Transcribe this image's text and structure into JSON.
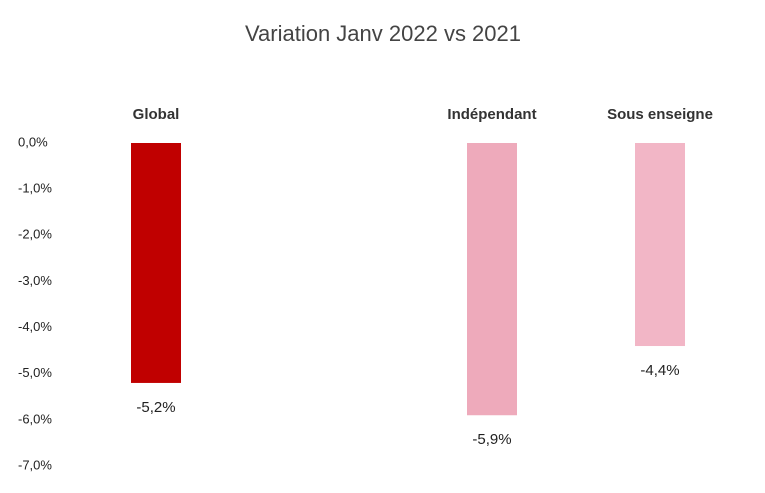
{
  "chart_data": {
    "type": "bar",
    "title": "Variation Janv 2022 vs 2021",
    "categories": [
      "Global",
      null,
      "Indépendant",
      "Sous enseigne"
    ],
    "values": [
      -5.2,
      null,
      -5.9,
      -4.4
    ],
    "value_labels": [
      "-5,2%",
      null,
      "-5,9%",
      "-4,4%"
    ],
    "colors": [
      "#c00000",
      null,
      "#eeaabb",
      "#f2b6c6"
    ],
    "ylim": [
      0,
      -7
    ],
    "yticks": [
      {
        "value": 0,
        "label": "0,0%"
      },
      {
        "value": -1,
        "label": "-1,0%"
      },
      {
        "value": -2,
        "label": "-2,0%"
      },
      {
        "value": -3,
        "label": "-3,0%"
      },
      {
        "value": -4,
        "label": "-4,0%"
      },
      {
        "value": -5,
        "label": "-5,0%"
      },
      {
        "value": -6,
        "label": "-6,0%"
      },
      {
        "value": -7,
        "label": "-7,0%"
      }
    ],
    "grid": false
  }
}
